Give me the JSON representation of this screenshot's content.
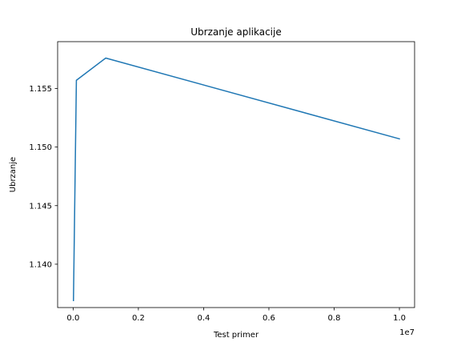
{
  "chart_data": {
    "type": "line",
    "title": "Ubrzanje aplikacije",
    "xlabel": "Test primer",
    "ylabel": "Ubrzanje",
    "x_offset_text": "1e7",
    "x": [
      10000,
      100000,
      1000000,
      10000000
    ],
    "series": [
      {
        "values": [
          1.1369,
          1.1557,
          1.1576,
          1.1507
        ],
        "color": "#1f77b4"
      }
    ],
    "xlim": [
      -475000,
      10465000
    ],
    "ylim": [
      1.1363,
      1.159
    ],
    "xticks": [
      {
        "value": 0,
        "label": "0.0"
      },
      {
        "value": 2000000,
        "label": "0.2"
      },
      {
        "value": 4000000,
        "label": "0.4"
      },
      {
        "value": 6000000,
        "label": "0.6"
      },
      {
        "value": 8000000,
        "label": "0.8"
      },
      {
        "value": 10000000,
        "label": "1.0"
      }
    ],
    "yticks": [
      {
        "value": 1.14,
        "label": "1.140"
      },
      {
        "value": 1.145,
        "label": "1.145"
      },
      {
        "value": 1.15,
        "label": "1.150"
      },
      {
        "value": 1.155,
        "label": "1.155"
      }
    ],
    "grid": false,
    "legend": "none"
  }
}
